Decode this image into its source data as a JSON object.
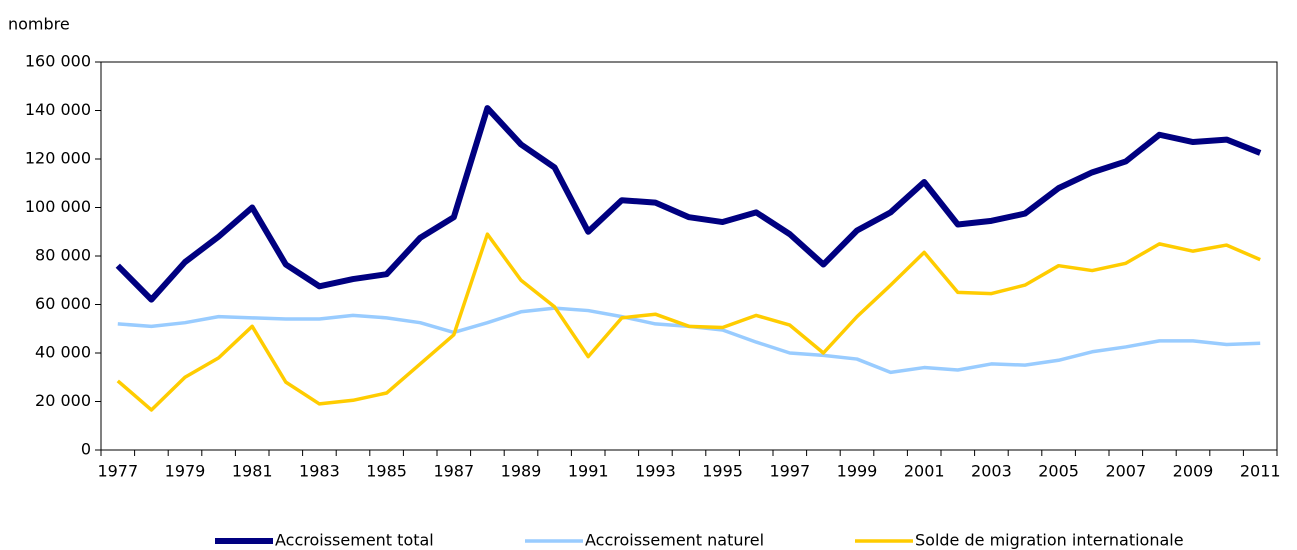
{
  "chart_data": {
    "type": "line",
    "y_label": "nombre",
    "categories": [
      "1977",
      null,
      "1979",
      null,
      "1981",
      null,
      "1983",
      null,
      "1985",
      null,
      "1987",
      null,
      "1989",
      null,
      "1991",
      null,
      "1993",
      null,
      "1995",
      null,
      "1997",
      null,
      "1999",
      null,
      "2001",
      null,
      "2003",
      null,
      "2005",
      null,
      "2007",
      null,
      "2009",
      null,
      "2011"
    ],
    "series": [
      {
        "name": "Accroissement total",
        "color": "#000080",
        "width": 6,
        "values": [
          76000,
          62000,
          77500,
          88000,
          100000,
          76500,
          67500,
          70500,
          72500,
          87500,
          96000,
          141000,
          126000,
          116500,
          90000,
          103000,
          102000,
          96000,
          94000,
          98000,
          89000,
          76500,
          90500,
          98000,
          110500,
          93000,
          94500,
          97500,
          108000,
          114500,
          119000,
          130000,
          127000,
          128000,
          122500
        ]
      },
      {
        "name": "Accroissement naturel",
        "color": "#99ccff",
        "width": 3.5,
        "values": [
          52000,
          51000,
          52500,
          55000,
          54500,
          54000,
          54000,
          55500,
          54500,
          52500,
          48500,
          52500,
          57000,
          58500,
          57500,
          55000,
          52000,
          51000,
          49500,
          44500,
          40000,
          39000,
          37500,
          32000,
          34000,
          33000,
          35500,
          35000,
          37000,
          40500,
          42500,
          45000,
          45000,
          43500,
          44000
        ]
      },
      {
        "name": "Solde de migration internationale",
        "color": "#ffcc00",
        "width": 3.5,
        "values": [
          28500,
          16500,
          30000,
          38000,
          51000,
          28000,
          19000,
          20500,
          23500,
          35500,
          47500,
          89000,
          70000,
          59000,
          38500,
          54500,
          56000,
          51000,
          50500,
          55500,
          51500,
          40000,
          55000,
          68000,
          81500,
          65000,
          64500,
          68000,
          76000,
          74000,
          77000,
          85000,
          82000,
          84500,
          78500
        ]
      }
    ],
    "ylim": [
      0,
      160000
    ],
    "yticks": [
      {
        "value": 0,
        "label": "0"
      },
      {
        "value": 20000,
        "label": "20 000"
      },
      {
        "value": 40000,
        "label": "40 000"
      },
      {
        "value": 60000,
        "label": "60 000"
      },
      {
        "value": 80000,
        "label": "80 000"
      },
      {
        "value": 100000,
        "label": "100 000"
      },
      {
        "value": 120000,
        "label": "120 000"
      },
      {
        "value": 140000,
        "label": "140 000"
      },
      {
        "value": 160000,
        "label": "160 000"
      }
    ],
    "grid": false,
    "legend": "bottom"
  }
}
